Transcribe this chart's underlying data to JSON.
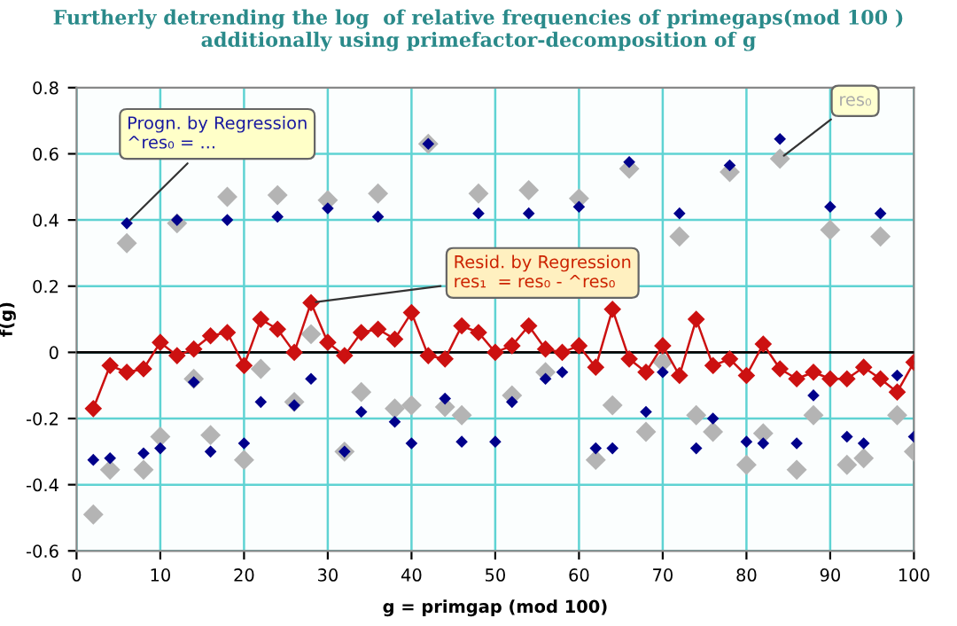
{
  "chart_data": {
    "type": "scatter",
    "title": "Furtherly detrending the log  of relative frequencies of primegaps(mod 100 )\nadditionally using primefactor-decomposition of g",
    "xlabel": "g = primgap (mod 100)",
    "ylabel": "f(g)",
    "x": [
      2,
      4,
      6,
      8,
      10,
      12,
      14,
      16,
      18,
      20,
      22,
      24,
      26,
      28,
      30,
      32,
      34,
      36,
      38,
      40,
      42,
      44,
      46,
      48,
      50,
      52,
      54,
      56,
      58,
      60,
      62,
      64,
      66,
      68,
      70,
      72,
      74,
      76,
      78,
      80,
      82,
      84,
      86,
      88,
      90,
      92,
      94,
      96,
      98,
      100
    ],
    "series": [
      {
        "color": "#b4b4b4",
        "marker": "diamond",
        "values": [
          -0.49,
          -0.355,
          0.33,
          -0.355,
          -0.255,
          0.39,
          -0.08,
          -0.25,
          0.47,
          -0.325,
          -0.05,
          0.475,
          -0.15,
          0.055,
          0.46,
          -0.3,
          -0.12,
          0.48,
          -0.17,
          -0.16,
          0.63,
          -0.165,
          -0.19,
          0.48,
          null,
          -0.13,
          0.49,
          -0.06,
          null,
          0.465,
          -0.325,
          -0.16,
          0.555,
          -0.24,
          -0.03,
          0.35,
          -0.19,
          -0.24,
          0.545,
          -0.34,
          -0.245,
          0.585,
          -0.355,
          -0.19,
          0.37,
          -0.34,
          -0.32,
          0.35,
          -0.19,
          -0.3
        ]
      },
      {
        "color": "#00008b",
        "marker": "diamond",
        "values": [
          -0.325,
          -0.32,
          0.39,
          -0.305,
          -0.29,
          0.4,
          -0.09,
          -0.3,
          0.4,
          -0.275,
          -0.15,
          0.41,
          -0.16,
          -0.08,
          0.435,
          -0.3,
          -0.18,
          0.41,
          -0.21,
          -0.275,
          0.63,
          -0.14,
          -0.27,
          0.42,
          -0.27,
          -0.15,
          0.42,
          -0.08,
          -0.06,
          0.44,
          -0.29,
          -0.29,
          0.575,
          -0.18,
          -0.06,
          0.42,
          -0.29,
          -0.2,
          0.565,
          -0.27,
          -0.275,
          0.645,
          -0.275,
          -0.13,
          0.44,
          -0.255,
          -0.275,
          0.42,
          -0.07,
          -0.255
        ]
      },
      {
        "type": "line",
        "color": "#cc1111",
        "marker": "diamond",
        "line_style": "solid",
        "values": [
          -0.17,
          -0.04,
          -0.06,
          -0.05,
          0.03,
          -0.01,
          0.01,
          0.05,
          0.06,
          -0.04,
          0.1,
          0.07,
          0,
          0.15,
          0.03,
          -0.01,
          0.06,
          0.07,
          0.04,
          0.12,
          -0.01,
          -0.02,
          0.08,
          0.06,
          0,
          0.02,
          0.08,
          0.01,
          0,
          0.02,
          -0.045,
          0.13,
          -0.02,
          -0.06,
          0.02,
          -0.07,
          0.1,
          -0.04,
          -0.02,
          -0.07,
          0.025,
          -0.05,
          -0.08,
          -0.06,
          -0.08,
          -0.08,
          -0.045,
          -0.08,
          -0.12,
          -0.03
        ]
      }
    ],
    "xlim": [
      0,
      100
    ],
    "xticks": [
      0,
      10,
      20,
      30,
      40,
      50,
      60,
      70,
      80,
      90,
      100
    ],
    "ylim": [
      -0.6,
      0.8
    ],
    "yticks": [
      -0.6,
      -0.4,
      -0.2,
      0,
      0.2,
      0.4,
      0.6,
      0.8
    ],
    "grid": true,
    "ref_lines": [
      {
        "axis": "y",
        "value": 0,
        "color": "#000000"
      }
    ],
    "annotations": [
      {
        "text": "Progn. by Regression\n^res₀ = ...",
        "x": 6,
        "y": 0.39
      },
      {
        "text": "Resid. by Regression\nres₁  = res₀ - ^res₀",
        "x": 28,
        "y": 0.15
      },
      {
        "text": "res₀",
        "x": 84,
        "y": 0.585
      }
    ]
  }
}
